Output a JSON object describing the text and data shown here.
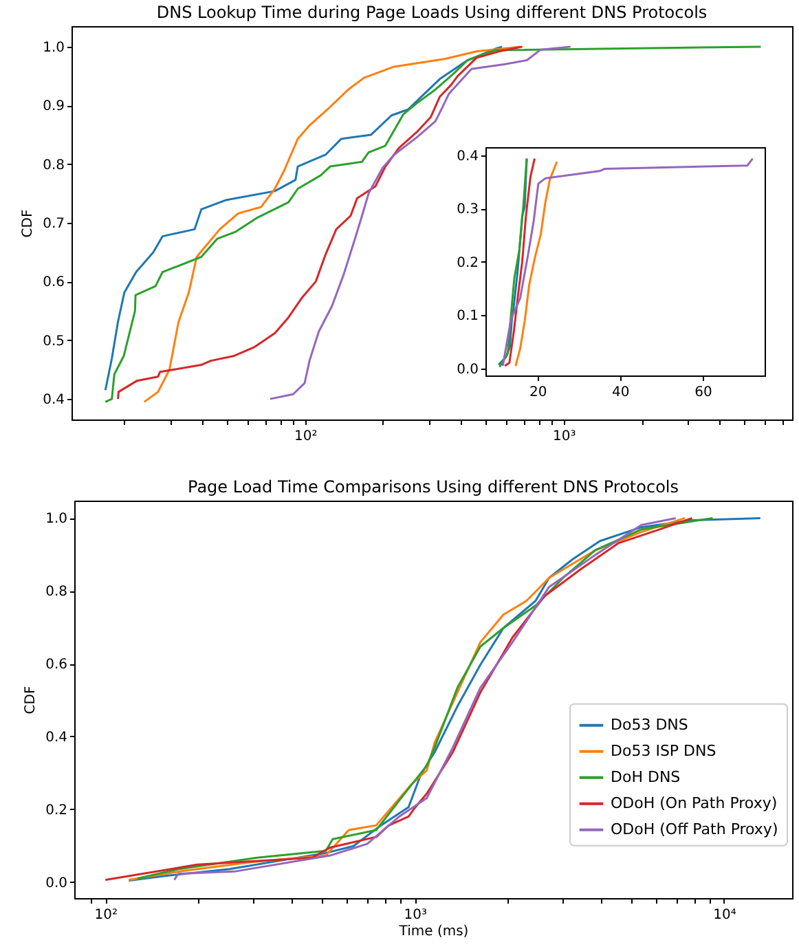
{
  "chart_data": [
    {
      "type": "line",
      "title": "DNS Lookup Time during Page Loads Using different DNS Protocols",
      "ylabel": "CDF",
      "log": "x",
      "xlim": [
        12.5,
        7640
      ],
      "ylim": [
        0.365,
        1.035
      ],
      "xticks": [
        {
          "value": 20,
          "label": null
        },
        {
          "value": 30,
          "label": null
        },
        {
          "value": 40,
          "label": null
        },
        {
          "value": 50,
          "label": null
        },
        {
          "value": 60,
          "label": null
        },
        {
          "value": 70,
          "label": null
        },
        {
          "value": 80,
          "label": null
        },
        {
          "value": 90,
          "label": null
        },
        {
          "value": 100,
          "label": "10²"
        },
        {
          "value": 200,
          "label": null
        },
        {
          "value": 300,
          "label": null
        },
        {
          "value": 400,
          "label": null
        },
        {
          "value": 500,
          "label": null
        },
        {
          "value": 600,
          "label": null
        },
        {
          "value": 700,
          "label": null
        },
        {
          "value": 800,
          "label": null
        },
        {
          "value": 900,
          "label": null
        },
        {
          "value": 1000,
          "label": "10³"
        },
        {
          "value": 2000,
          "label": null
        },
        {
          "value": 3000,
          "label": null
        },
        {
          "value": 4000,
          "label": null
        },
        {
          "value": 5000,
          "label": null
        },
        {
          "value": 6000,
          "label": null
        },
        {
          "value": 7000,
          "label": null
        }
      ],
      "yticks": [
        {
          "value": 0.4,
          "label": "0.4"
        },
        {
          "value": 0.5,
          "label": "0.5"
        },
        {
          "value": 0.6,
          "label": "0.6"
        },
        {
          "value": 0.7,
          "label": "0.7"
        },
        {
          "value": 0.8,
          "label": "0.8"
        },
        {
          "value": 0.9,
          "label": "0.9"
        },
        {
          "value": 1.0,
          "label": "1.0"
        }
      ],
      "series": [
        {
          "color": "#1f77b4",
          "x": [
            16.9,
            17.9,
            18.9,
            20.0,
            22.2,
            25.9,
            28.1,
            37.4,
            39.7,
            49.7,
            76.4,
            91.8,
            93.7,
            120,
            138,
            180,
            216,
            250,
            282,
            332,
            425,
            542,
            577
          ],
          "values": [
            0.415,
            0.469,
            0.531,
            0.581,
            0.616,
            0.65,
            0.677,
            0.689,
            0.723,
            0.739,
            0.754,
            0.773,
            0.796,
            0.816,
            0.843,
            0.85,
            0.883,
            0.893,
            0.915,
            0.945,
            0.977,
            0.996,
            1.0
          ]
        },
        {
          "color": "#ff7f0e",
          "x": [
            23.9,
            27.0,
            29.9,
            32.4,
            35.5,
            38.1,
            46.8,
            55.1,
            67.6,
            76.4,
            83.0,
            93.7,
            104,
            122,
            147,
            169,
            221,
            346,
            460,
            679
          ],
          "values": [
            0.395,
            0.412,
            0.45,
            0.531,
            0.581,
            0.642,
            0.689,
            0.716,
            0.727,
            0.758,
            0.789,
            0.843,
            0.866,
            0.893,
            0.927,
            0.947,
            0.966,
            0.979,
            0.992,
            1.0
          ]
        },
        {
          "color": "#2ca02c",
          "x": [
            16.9,
            17.9,
            18.3,
            19.9,
            22.0,
            22.1,
            26.4,
            28.1,
            39.7,
            45.8,
            54.0,
            64.9,
            86.3,
            93.7,
            115,
            125,
            166,
            176,
            204,
            240,
            271,
            319,
            375,
            425,
            542,
            5780
          ],
          "values": [
            0.395,
            0.4,
            0.442,
            0.473,
            0.55,
            0.577,
            0.592,
            0.616,
            0.642,
            0.673,
            0.685,
            0.708,
            0.735,
            0.758,
            0.781,
            0.796,
            0.804,
            0.82,
            0.831,
            0.885,
            0.904,
            0.927,
            0.954,
            0.977,
            0.994,
            1.0
          ]
        },
        {
          "color": "#d62728",
          "x": [
            18.9,
            19.0,
            22.4,
            27.0,
            27.5,
            39.7,
            43.2,
            52.8,
            63.5,
            76.4,
            86.3,
            97.5,
            110,
            120,
            132,
            150,
            159,
            187,
            204,
            230,
            271,
            306,
            332,
            367,
            389,
            460,
            562,
            692
          ],
          "values": [
            0.4,
            0.412,
            0.431,
            0.438,
            0.446,
            0.458,
            0.465,
            0.473,
            0.488,
            0.512,
            0.539,
            0.573,
            0.6,
            0.646,
            0.689,
            0.712,
            0.742,
            0.762,
            0.795,
            0.827,
            0.855,
            0.88,
            0.915,
            0.935,
            0.95,
            0.981,
            0.992,
            1.0
          ]
        },
        {
          "color": "#9467bd",
          "x": [
            73.3,
            89.9,
            99.6,
            104,
            113,
            127,
            141,
            156,
            166,
            176,
            199,
            221,
            271,
            319,
            339,
            360,
            440,
            589,
            721,
            815,
            1063
          ],
          "values": [
            0.4,
            0.408,
            0.427,
            0.465,
            0.515,
            0.558,
            0.612,
            0.673,
            0.712,
            0.75,
            0.793,
            0.816,
            0.846,
            0.873,
            0.896,
            0.92,
            0.962,
            0.97,
            0.977,
            0.995,
            1.0
          ]
        }
      ]
    },
    {
      "type": "line",
      "xlim": [
        7.4,
        75
      ],
      "ylim": [
        -0.013,
        0.4155
      ],
      "xticks": [
        20,
        40,
        60
      ],
      "yticks": [
        {
          "value": 0,
          "label": "0.0"
        },
        {
          "value": 0.1,
          "label": "0.1"
        },
        {
          "value": 0.2,
          "label": "0.2"
        },
        {
          "value": 0.3,
          "label": "0.3"
        },
        {
          "value": 0.4,
          "label": "0.4"
        }
      ],
      "series": [
        {
          "color": "#1f77b4",
          "x": [
            10.6,
            12.4,
            13.3,
            13.8,
            14.1,
            15.2,
            16.3,
            16.9,
            17.4
          ],
          "values": [
            0.007,
            0.022,
            0.041,
            0.093,
            0.106,
            0.183,
            0.286,
            0.304,
            0.394
          ]
        },
        {
          "color": "#ff7f0e",
          "x": [
            14.7,
            15.8,
            16.9,
            18.0,
            19.4,
            20.8,
            21.9,
            23.0,
            24.7
          ],
          "values": [
            0.005,
            0.037,
            0.089,
            0.157,
            0.209,
            0.252,
            0.312,
            0.355,
            0.388
          ]
        },
        {
          "color": "#2ca02c",
          "x": [
            10.8,
            12.8,
            13.6,
            14.4,
            15.6,
            16.6,
            17.4
          ],
          "values": [
            0.003,
            0.028,
            0.102,
            0.17,
            0.222,
            0.308,
            0.394
          ]
        },
        {
          "color": "#d62728",
          "x": [
            12.1,
            13.2,
            14.3,
            15.2,
            16.3,
            17.2,
            18.3,
            19.3
          ],
          "values": [
            0.005,
            0.011,
            0.071,
            0.132,
            0.2,
            0.286,
            0.36,
            0.394
          ]
        },
        {
          "color": "#9467bd",
          "x": [
            11.6,
            13.6,
            15.8,
            17.7,
            19.1,
            20.2,
            21.9,
            35.2,
            36.3,
            70.8,
            72.1
          ],
          "values": [
            0.005,
            0.093,
            0.132,
            0.213,
            0.278,
            0.347,
            0.357,
            0.371,
            0.375,
            0.381,
            0.394
          ]
        }
      ]
    },
    {
      "type": "line",
      "title": "Page Load Time Comparisons Using different DNS Protocols",
      "xlabel": "Time (ms)",
      "ylabel": "CDF",
      "log": "x",
      "xlim": [
        79.3,
        16600
      ],
      "ylim": [
        -0.044,
        1.048
      ],
      "legend": "right",
      "xticks": [
        {
          "value": 90,
          "label": null
        },
        {
          "value": 100,
          "label": "10²"
        },
        {
          "value": 200,
          "label": null
        },
        {
          "value": 300,
          "label": null
        },
        {
          "value": 400,
          "label": null
        },
        {
          "value": 500,
          "label": null
        },
        {
          "value": 600,
          "label": null
        },
        {
          "value": 700,
          "label": null
        },
        {
          "value": 800,
          "label": null
        },
        {
          "value": 900,
          "label": null
        },
        {
          "value": 1000,
          "label": "10³"
        },
        {
          "value": 2000,
          "label": null
        },
        {
          "value": 3000,
          "label": null
        },
        {
          "value": 4000,
          "label": null
        },
        {
          "value": 5000,
          "label": null
        },
        {
          "value": 6000,
          "label": null
        },
        {
          "value": 7000,
          "label": null
        },
        {
          "value": 8000,
          "label": null
        },
        {
          "value": 9000,
          "label": null
        },
        {
          "value": 10000,
          "label": "10⁴"
        }
      ],
      "yticks": [
        {
          "value": 0,
          "label": "0.0"
        },
        {
          "value": 0.2,
          "label": "0.2"
        },
        {
          "value": 0.4,
          "label": "0.4"
        },
        {
          "value": 0.6,
          "label": "0.6"
        },
        {
          "value": 0.8,
          "label": "0.8"
        },
        {
          "value": 1.0,
          "label": "1.0"
        }
      ],
      "series": [
        {
          "name": "Do53 DNS",
          "color": "#1f77b4",
          "x": [
            119,
            156,
            252,
            516,
            634,
            778,
            955,
            1046,
            1160,
            1374,
            1630,
            1935,
            2460,
            2720,
            3240,
            3970,
            5400,
            7880,
            13100
          ],
          "values": [
            0.004,
            0.017,
            0.036,
            0.08,
            0.099,
            0.156,
            0.206,
            0.295,
            0.357,
            0.483,
            0.597,
            0.698,
            0.773,
            0.836,
            0.887,
            0.937,
            0.975,
            0.994,
            1.0
          ]
        },
        {
          "name": "Do53 ISP DNS",
          "color": "#ff7f0e",
          "x": [
            119,
            173,
            298,
            516,
            612,
            751,
            977,
            1094,
            1160,
            1374,
            1630,
            1935,
            2300,
            2720,
            3840,
            5400,
            7470
          ],
          "values": [
            0.006,
            0.029,
            0.055,
            0.073,
            0.143,
            0.156,
            0.269,
            0.307,
            0.383,
            0.521,
            0.659,
            0.735,
            0.773,
            0.836,
            0.912,
            0.962,
            1.0
          ]
        },
        {
          "name": "DoH DNS",
          "color": "#2ca02c",
          "x": [
            127,
            173,
            309,
            516,
            543,
            751,
            955,
            1094,
            1160,
            1374,
            1630,
            1935,
            2460,
            3020,
            3840,
            5400,
            9190
          ],
          "values": [
            0.01,
            0.036,
            0.067,
            0.086,
            0.118,
            0.143,
            0.257,
            0.32,
            0.37,
            0.534,
            0.647,
            0.698,
            0.76,
            0.836,
            0.912,
            0.969,
            1.0
          ]
        },
        {
          "name": "ODoH (On Path Proxy)",
          "color": "#d62728",
          "x": [
            100,
            198,
            466,
            533,
            751,
            822,
            955,
            1005,
            1094,
            1328,
            1630,
            2070,
            2630,
            3460,
            4550,
            6190,
            7880
          ],
          "values": [
            0.006,
            0.048,
            0.067,
            0.095,
            0.124,
            0.155,
            0.18,
            0.206,
            0.243,
            0.357,
            0.521,
            0.672,
            0.786,
            0.861,
            0.931,
            0.969,
            1.0
          ]
        },
        {
          "name": "ODoH (Off Path Proxy)",
          "color": "#9467bd",
          "x": [
            167,
            172,
            261,
            533,
            702,
            891,
            1094,
            1328,
            1630,
            2070,
            2720,
            3840,
            5400,
            6980
          ],
          "values": [
            0.006,
            0.023,
            0.029,
            0.073,
            0.105,
            0.18,
            0.231,
            0.37,
            0.534,
            0.659,
            0.811,
            0.899,
            0.981,
            1.0
          ]
        }
      ]
    }
  ]
}
